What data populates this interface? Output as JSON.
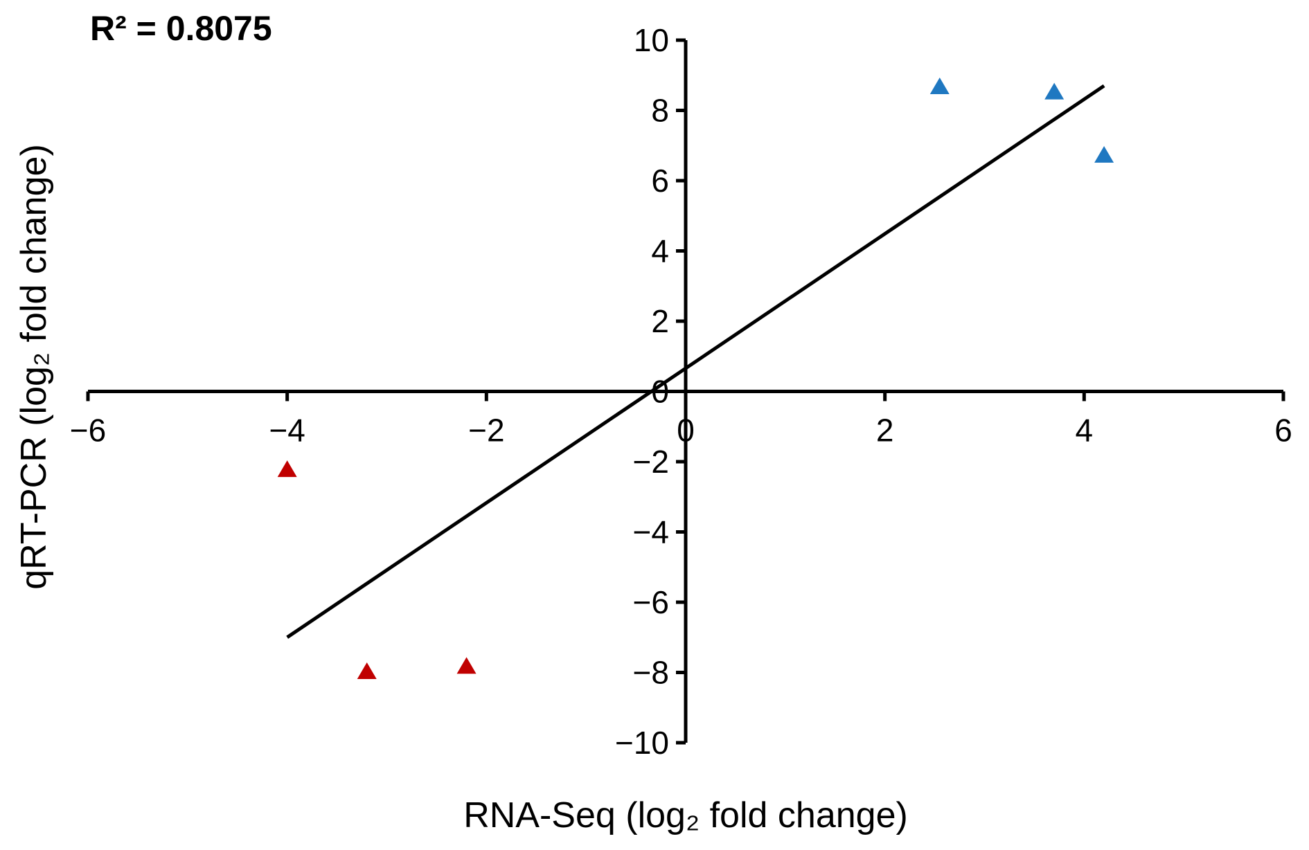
{
  "chart_data": {
    "type": "scatter",
    "title": "",
    "annotation": "R² = 0.8075",
    "xlabel": "RNA-Seq (log₂ fold change)",
    "ylabel": "qRT-PCR (log₂ fold change)",
    "xlim": [
      -6,
      6
    ],
    "ylim": [
      -10,
      10
    ],
    "x_ticks": [
      -6,
      -4,
      -2,
      0,
      2,
      4,
      6
    ],
    "y_ticks": [
      -10,
      -8,
      -6,
      -4,
      -2,
      0,
      2,
      4,
      6,
      8,
      10
    ],
    "x_tick_labels": [
      "−6",
      "−4",
      "−2",
      "0",
      "2",
      "4",
      "6"
    ],
    "y_tick_labels": [
      "−10",
      "−8",
      "−6",
      "−4",
      "−2",
      "0",
      "2",
      "4",
      "6",
      "8",
      "10"
    ],
    "grid": false,
    "marker": "triangle",
    "series": [
      {
        "color": "#1f78c1",
        "points": [
          {
            "x": 2.55,
            "y": 8.7
          },
          {
            "x": 3.7,
            "y": 8.55
          },
          {
            "x": 4.2,
            "y": 6.75
          }
        ]
      },
      {
        "color": "#c00000",
        "points": [
          {
            "x": -4.0,
            "y": -2.2
          },
          {
            "x": -3.2,
            "y": -7.95
          },
          {
            "x": -2.2,
            "y": -7.8
          }
        ]
      }
    ],
    "trendline": {
      "color": "#000000",
      "points": [
        {
          "x": -4.0,
          "y": -7.0
        },
        {
          "x": 4.2,
          "y": 8.7
        }
      ]
    }
  }
}
